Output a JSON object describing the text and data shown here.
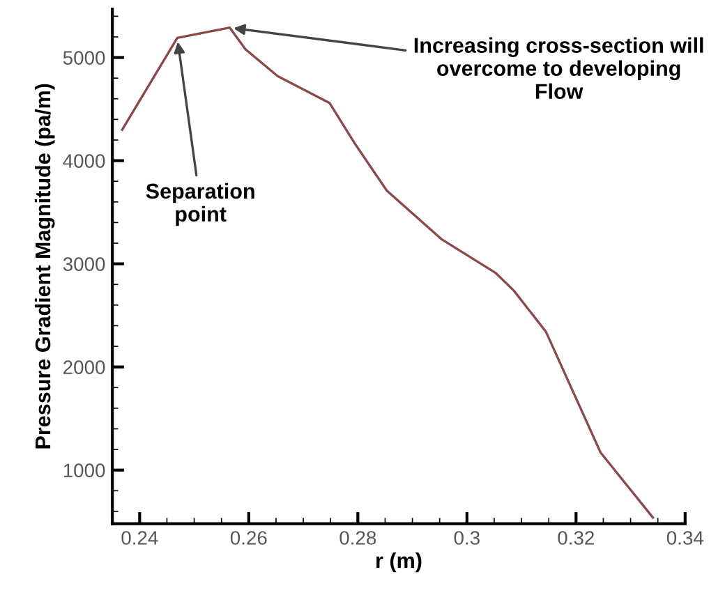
{
  "chart_data": {
    "type": "line",
    "xlabel": "r (m)",
    "ylabel": "Pressure Gradient Magnitude (pa/m)",
    "x": [
      0.2368,
      0.2469,
      0.2565,
      0.2594,
      0.2653,
      0.2748,
      0.2794,
      0.2853,
      0.2953,
      0.3053,
      0.3086,
      0.3145,
      0.3245,
      0.3341
    ],
    "series": [
      {
        "color": "#8b4a4a",
        "values": [
          4300,
          5190,
          5290,
          5080,
          4820,
          4560,
          4170,
          3710,
          3240,
          2910,
          2740,
          2340,
          1170,
          540
        ]
      }
    ],
    "xlim": [
      0.235,
      0.34
    ],
    "xticks": [
      0.24,
      0.26,
      0.28,
      0.3,
      0.32,
      0.34
    ],
    "ylim": [
      480,
      5470
    ],
    "yticks": [
      1000,
      2000,
      3000,
      4000,
      5000
    ],
    "marker": "none",
    "line_style": "solid",
    "annotations": [
      {
        "text": "Separation\npoint",
        "x": 0.2469,
        "y": 5190
      },
      {
        "text": "Increasing cross-section will\novercome to developing\nFlow",
        "x": 0.2565,
        "y": 5290
      }
    ]
  }
}
